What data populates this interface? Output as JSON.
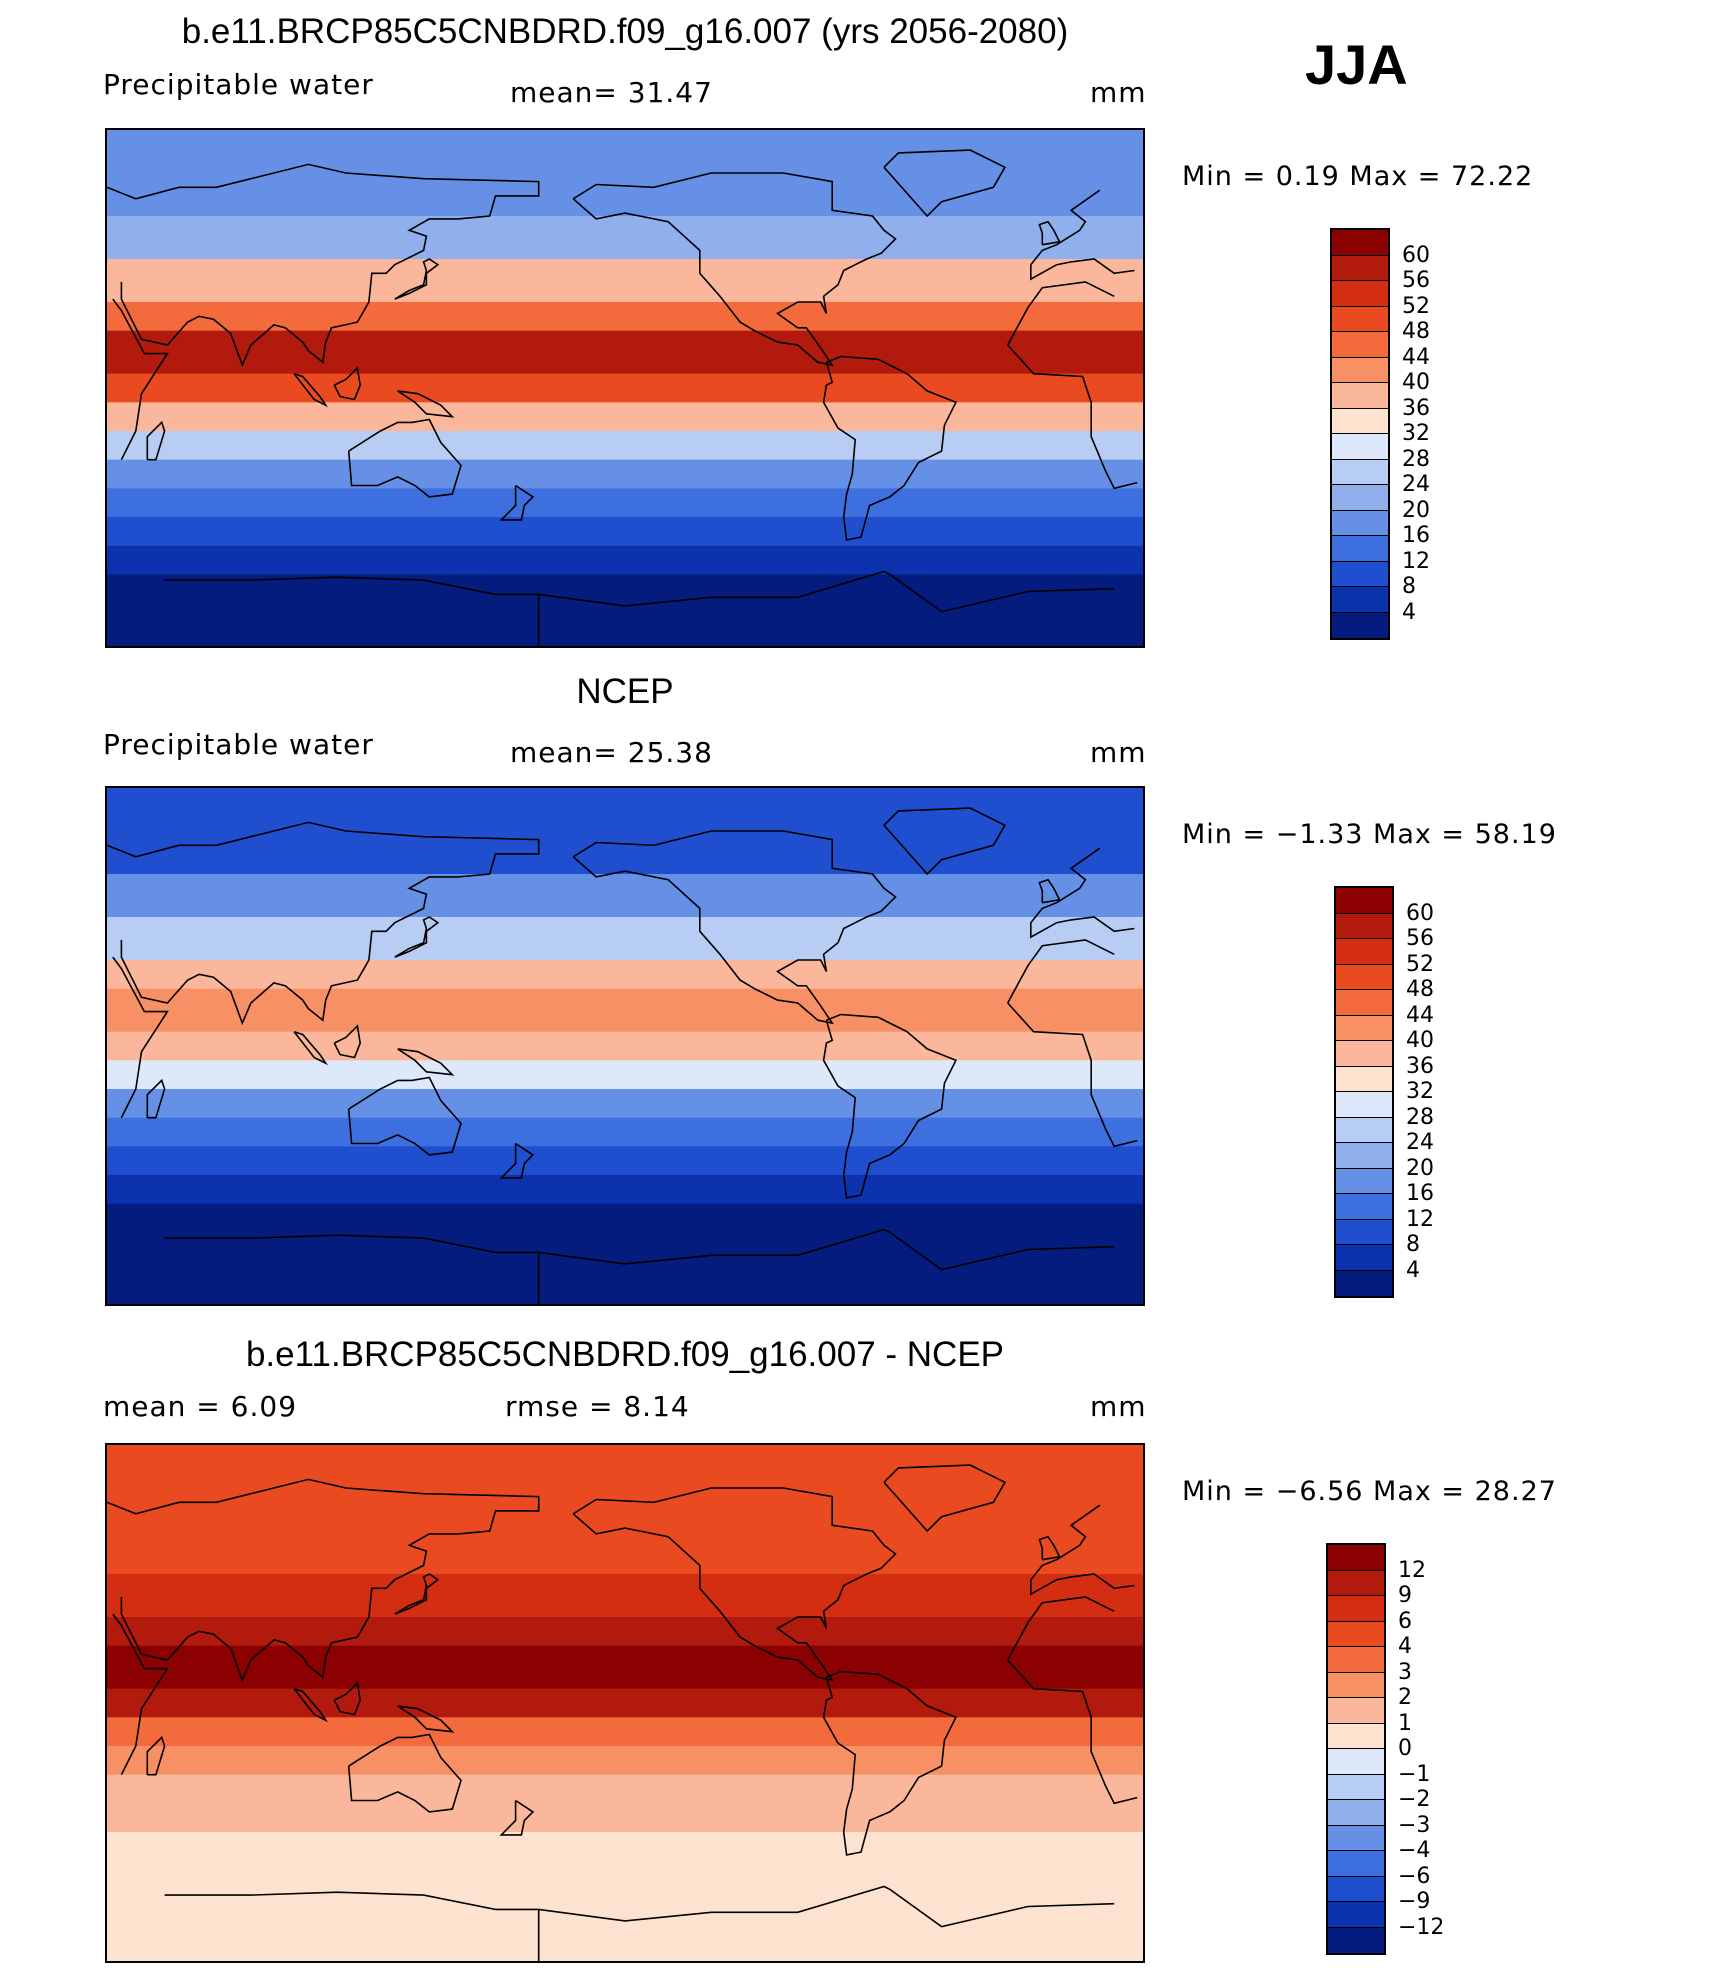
{
  "season": "JJA",
  "panels": [
    {
      "title": "b.e11.BRCP85C5CNBDRD.f09_g16.007 (yrs 2056-2080)",
      "left_label": "Precipitable  water",
      "center_label": "mean=   31.47",
      "units": "mm",
      "minmax": "Min  =     0.19  Max  =    72.22",
      "colorbar_labels": [
        "60",
        "56",
        "52",
        "48",
        "44",
        "40",
        "36",
        "32",
        "28",
        "24",
        "20",
        "16",
        "12",
        "8",
        "4"
      ],
      "colorbar_colors": [
        "#8b0000",
        "#b21a0d",
        "#d42e12",
        "#ea4a1f",
        "#f36b3c",
        "#f79064",
        "#fbb79b",
        "#fde2d0",
        "#dde9fa",
        "#b7cdf4",
        "#8fb0ed",
        "#6690e6",
        "#3e6fde",
        "#1f4fcf",
        "#0d32ad",
        "#031c7e"
      ]
    },
    {
      "title": "NCEP",
      "left_label": "Precipitable  water",
      "center_label": "mean=   25.38",
      "units": "mm",
      "minmax": "Min  =    −1.33  Max  =    58.19",
      "colorbar_labels": [
        "60",
        "56",
        "52",
        "48",
        "44",
        "40",
        "36",
        "32",
        "28",
        "24",
        "20",
        "16",
        "12",
        "8",
        "4"
      ],
      "colorbar_colors": [
        "#8b0000",
        "#b21a0d",
        "#d42e12",
        "#ea4a1f",
        "#f36b3c",
        "#f79064",
        "#fbb79b",
        "#fde2d0",
        "#dde9fa",
        "#b7cdf4",
        "#8fb0ed",
        "#6690e6",
        "#3e6fde",
        "#1f4fcf",
        "#0d32ad",
        "#031c7e"
      ]
    },
    {
      "title": "b.e11.BRCP85C5CNBDRD.f09_g16.007 - NCEP",
      "left_label": "mean  =      6.09",
      "center_label": "rmse  =      8.14",
      "units": "mm",
      "minmax": "Min  =    −6.56  Max  =    28.27",
      "colorbar_labels": [
        "12",
        "9",
        "6",
        "4",
        "3",
        "2",
        "1",
        "0",
        "−1",
        "−2",
        "−3",
        "−4",
        "−6",
        "−9",
        "−12"
      ],
      "colorbar_colors": [
        "#8b0000",
        "#b21a0d",
        "#d42e12",
        "#ea4a1f",
        "#f36b3c",
        "#f79064",
        "#fbb79b",
        "#fde2d0",
        "#dde9fa",
        "#b7cdf4",
        "#8fb0ed",
        "#6690e6",
        "#3e6fde",
        "#1f4fcf",
        "#0d32ad",
        "#031c7e"
      ]
    }
  ],
  "map_fields": {
    "panel_0": [
      {
        "lat_from": 90,
        "lat_to": 60,
        "color": "#6690e6"
      },
      {
        "lat_from": 60,
        "lat_to": 45,
        "color": "#8fb0ed"
      },
      {
        "lat_from": 45,
        "lat_to": 30,
        "color": "#fbb79b"
      },
      {
        "lat_from": 30,
        "lat_to": 20,
        "color": "#f36b3c"
      },
      {
        "lat_from": 20,
        "lat_to": 5,
        "color": "#b21a0d"
      },
      {
        "lat_from": 5,
        "lat_to": -5,
        "color": "#ea4a1f"
      },
      {
        "lat_from": -5,
        "lat_to": -15,
        "color": "#fbb79b"
      },
      {
        "lat_from": -15,
        "lat_to": -25,
        "color": "#b7cdf4"
      },
      {
        "lat_from": -25,
        "lat_to": -35,
        "color": "#6690e6"
      },
      {
        "lat_from": -35,
        "lat_to": -45,
        "color": "#3e6fde"
      },
      {
        "lat_from": -45,
        "lat_to": -55,
        "color": "#1f4fcf"
      },
      {
        "lat_from": -55,
        "lat_to": -65,
        "color": "#0d32ad"
      },
      {
        "lat_from": -65,
        "lat_to": -90,
        "color": "#031c7e"
      }
    ],
    "panel_1": [
      {
        "lat_from": 90,
        "lat_to": 60,
        "color": "#1f4fcf"
      },
      {
        "lat_from": 60,
        "lat_to": 45,
        "color": "#6690e6"
      },
      {
        "lat_from": 45,
        "lat_to": 30,
        "color": "#b7cdf4"
      },
      {
        "lat_from": 30,
        "lat_to": 20,
        "color": "#fbb79b"
      },
      {
        "lat_from": 20,
        "lat_to": 5,
        "color": "#f79064"
      },
      {
        "lat_from": 5,
        "lat_to": -5,
        "color": "#fbb79b"
      },
      {
        "lat_from": -5,
        "lat_to": -15,
        "color": "#dde9fa"
      },
      {
        "lat_from": -15,
        "lat_to": -25,
        "color": "#6690e6"
      },
      {
        "lat_from": -25,
        "lat_to": -35,
        "color": "#3e6fde"
      },
      {
        "lat_from": -35,
        "lat_to": -45,
        "color": "#1f4fcf"
      },
      {
        "lat_from": -45,
        "lat_to": -55,
        "color": "#0d32ad"
      },
      {
        "lat_from": -55,
        "lat_to": -65,
        "color": "#031c7e"
      },
      {
        "lat_from": -65,
        "lat_to": -90,
        "color": "#031c7e"
      }
    ],
    "panel_2": [
      {
        "lat_from": 90,
        "lat_to": 60,
        "color": "#ea4a1f"
      },
      {
        "lat_from": 60,
        "lat_to": 45,
        "color": "#ea4a1f"
      },
      {
        "lat_from": 45,
        "lat_to": 30,
        "color": "#d42e12"
      },
      {
        "lat_from": 30,
        "lat_to": 20,
        "color": "#b21a0d"
      },
      {
        "lat_from": 20,
        "lat_to": 5,
        "color": "#8b0000"
      },
      {
        "lat_from": 5,
        "lat_to": -5,
        "color": "#b21a0d"
      },
      {
        "lat_from": -5,
        "lat_to": -15,
        "color": "#f36b3c"
      },
      {
        "lat_from": -15,
        "lat_to": -25,
        "color": "#f79064"
      },
      {
        "lat_from": -25,
        "lat_to": -35,
        "color": "#fbb79b"
      },
      {
        "lat_from": -35,
        "lat_to": -45,
        "color": "#fbb79b"
      },
      {
        "lat_from": -45,
        "lat_to": -55,
        "color": "#fde2d0"
      },
      {
        "lat_from": -55,
        "lat_to": -65,
        "color": "#fde2d0"
      },
      {
        "lat_from": -65,
        "lat_to": -90,
        "color": "#fde2d0"
      }
    ]
  }
}
